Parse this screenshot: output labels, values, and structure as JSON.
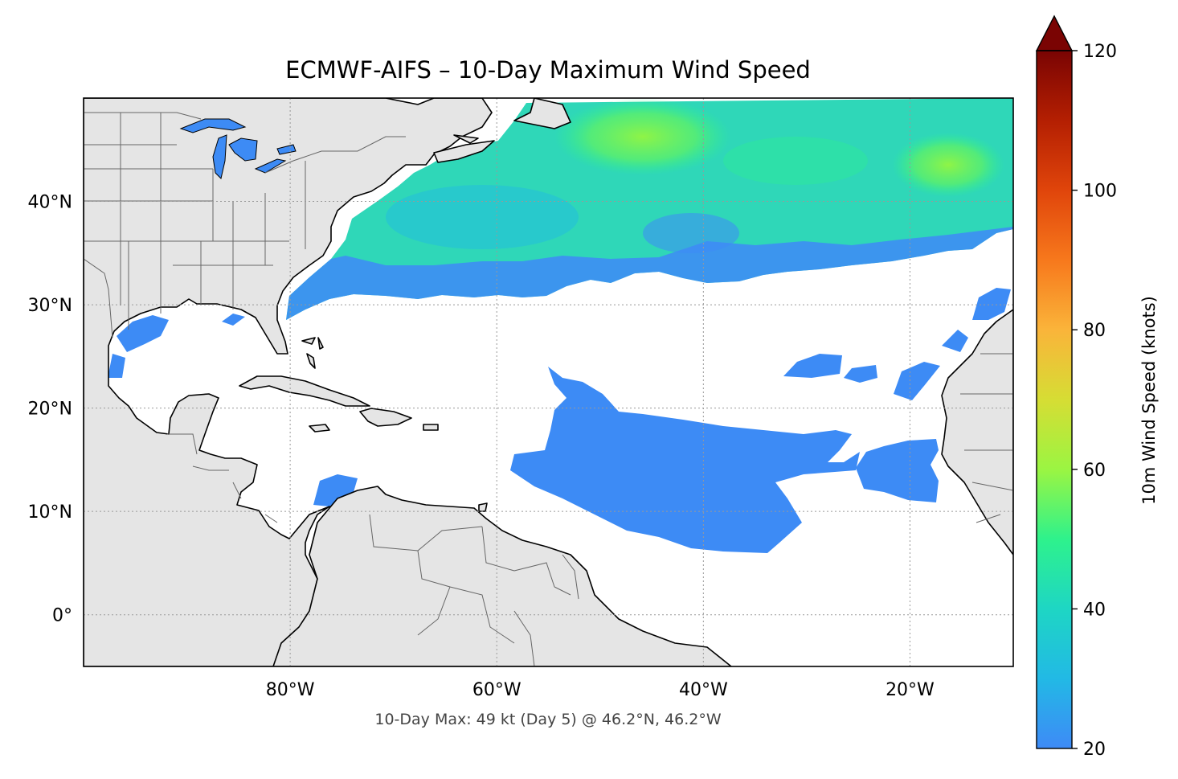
{
  "title": "ECMWF-AIFS – 10-Day Maximum Wind Speed",
  "caption": "10-Day Max: 49 kt (Day 5) @ 46.2°N, 46.2°W",
  "map": {
    "extent": {
      "lon": [
        -100,
        -10
      ],
      "lat": [
        -5,
        50
      ]
    },
    "lon_ticks": [
      {
        "value": -80,
        "label": "80°W"
      },
      {
        "value": -60,
        "label": "60°W"
      },
      {
        "value": -40,
        "label": "40°W"
      },
      {
        "value": -20,
        "label": "20°W"
      }
    ],
    "lat_ticks": [
      {
        "value": 40,
        "label": "40°N"
      },
      {
        "value": 30,
        "label": "30°N"
      },
      {
        "value": 20,
        "label": "20°N"
      },
      {
        "value": 10,
        "label": "10°N"
      },
      {
        "value": 0,
        "label": "0°"
      }
    ],
    "land_color": "#e5e5e5",
    "ocean_color": "#ffffff",
    "coast_color": "#000000",
    "border_color": "#666666",
    "gridlines": true
  },
  "colorbar": {
    "label": "10m Wind Speed (knots)",
    "min": 20,
    "max": 120,
    "extend": "max",
    "ticks": [
      {
        "value": 20,
        "label": "20"
      },
      {
        "value": 40,
        "label": "40"
      },
      {
        "value": 60,
        "label": "60"
      },
      {
        "value": 80,
        "label": "80"
      },
      {
        "value": 100,
        "label": "100"
      },
      {
        "value": 120,
        "label": "120"
      }
    ],
    "colors": [
      "#3e8af7",
      "#22b9e5",
      "#1ed6c4",
      "#2ef28c",
      "#9bf542",
      "#d6dd34",
      "#fab43a",
      "#f7781c",
      "#e0450b",
      "#b41f02",
      "#7a0403"
    ]
  },
  "chart_data": {
    "type": "heatmap",
    "value_units": "knots",
    "max_value": 49,
    "max_day": 5,
    "max_location": {
      "lat": 46.2,
      "lon": -46.2
    },
    "regions": [
      {
        "name": "North Atlantic storm-track band",
        "lat": [
          30,
          50
        ],
        "lon": [
          -80,
          -10
        ],
        "wind_range": [
          25,
          45
        ]
      },
      {
        "name": "Central tropical Atlantic",
        "lat": [
          6,
          24
        ],
        "lon": [
          -53,
          -29
        ],
        "wind_range": [
          20,
          26
        ]
      },
      {
        "name": "Eastern tropical Atlantic",
        "lat": [
          12,
          17
        ],
        "lon": [
          -27,
          -22
        ],
        "wind_range": [
          20,
          24
        ]
      },
      {
        "name": "Gulf of Mexico",
        "lat": [
          22,
          29
        ],
        "lon": [
          -98,
          -91
        ],
        "wind_range": [
          20,
          23
        ]
      },
      {
        "name": "Caribbean (off Colombia)",
        "lat": [
          11,
          14
        ],
        "lon": [
          -77,
          -73
        ],
        "wind_range": [
          20,
          23
        ]
      }
    ],
    "peaks": [
      {
        "lat": 47,
        "lon": -46,
        "value": 49
      },
      {
        "lat": 43.5,
        "lon": -18,
        "value": 46
      }
    ]
  }
}
